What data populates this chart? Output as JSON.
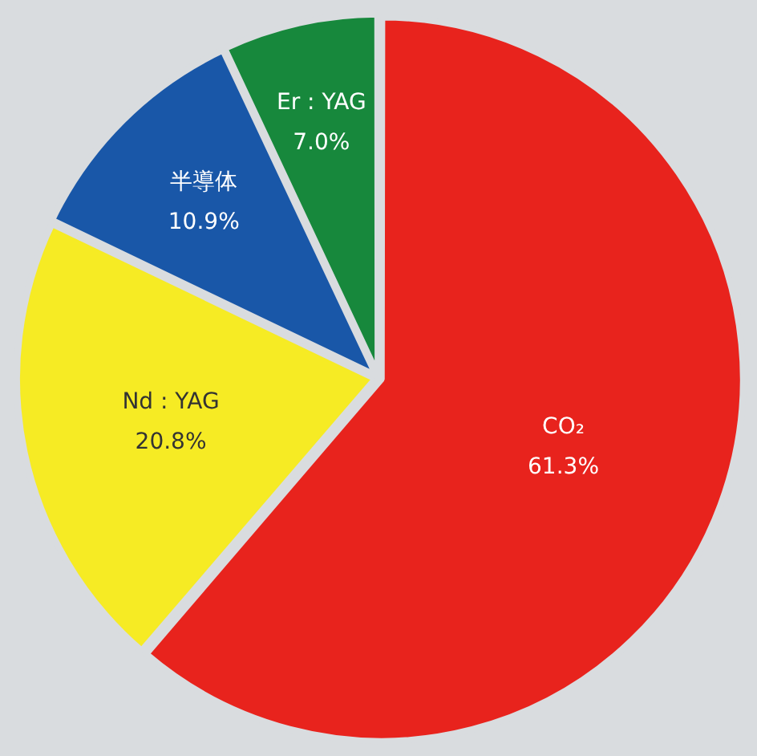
{
  "chart_data": {
    "type": "pie",
    "categories": [
      "CO₂",
      "Nd : YAG",
      "半導体",
      "Er : YAG"
    ],
    "values": [
      61.3,
      20.8,
      10.9,
      7.0
    ],
    "colors": [
      "#e8231d",
      "#f6eb24",
      "#1957a8",
      "#17883c"
    ],
    "value_labels": [
      "61.3%",
      "20.8%",
      "10.9%",
      "7.0%"
    ]
  }
}
